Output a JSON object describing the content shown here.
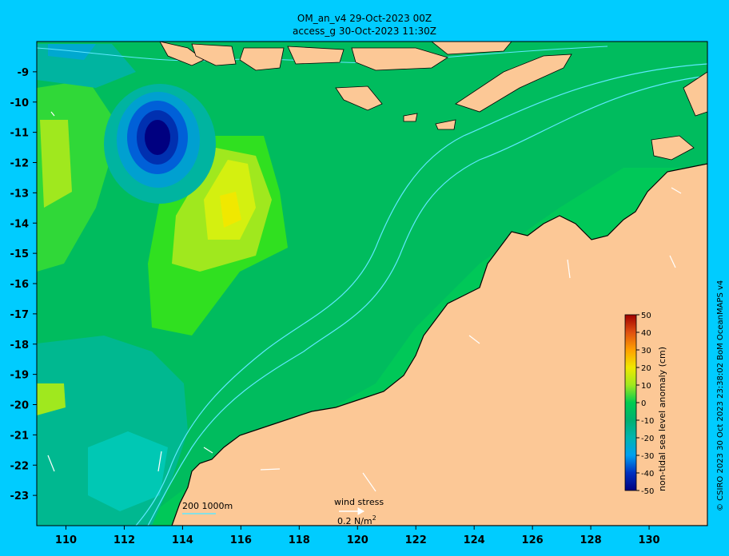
{
  "header": {
    "line1": "OM_an_v4  29-Oct-2023 00Z",
    "line2": "access_g 30-Oct-2023 11:30Z"
  },
  "copyright": "© CSIRO 2023  30 Oct 2023 23:38:02 BoM OceanMAPS v4",
  "map": {
    "lon_ticks": [
      "110",
      "112",
      "114",
      "116",
      "118",
      "120",
      "122",
      "124",
      "126",
      "128",
      "130"
    ],
    "lat_ticks": [
      "-9",
      "-10",
      "-11",
      "-12",
      "-13",
      "-14",
      "-15",
      "-16",
      "-17",
      "-18",
      "-19",
      "-20",
      "-21",
      "-22",
      "-23"
    ],
    "lon_range": [
      109.0,
      132.0
    ],
    "lat_range": [
      -24.0,
      -8.0
    ],
    "colors": {
      "land": "#fcc896",
      "coast": "#000000",
      "contour": "#5fe8ff"
    }
  },
  "legend": {
    "isobath_label": "200  1000m",
    "wind_label": "wind stress",
    "wind_unit": "0.2 N/m",
    "wind_unit_sup": "2"
  },
  "colorbar": {
    "label": "non-tidal sea level anomaly (cm)",
    "ticks": [
      "50",
      "40",
      "30",
      "20",
      "10",
      "0",
      "-10",
      "-20",
      "-30",
      "-40",
      "-50"
    ],
    "colors": [
      "#000080",
      "#0030c0",
      "#0070e0",
      "#00b0f0",
      "#00c8b4",
      "#00b478",
      "#00c850",
      "#30e020",
      "#a0e81e",
      "#e0f000",
      "#ffd700",
      "#ffa000",
      "#f07800",
      "#e05010",
      "#c02000",
      "#a00000"
    ]
  }
}
